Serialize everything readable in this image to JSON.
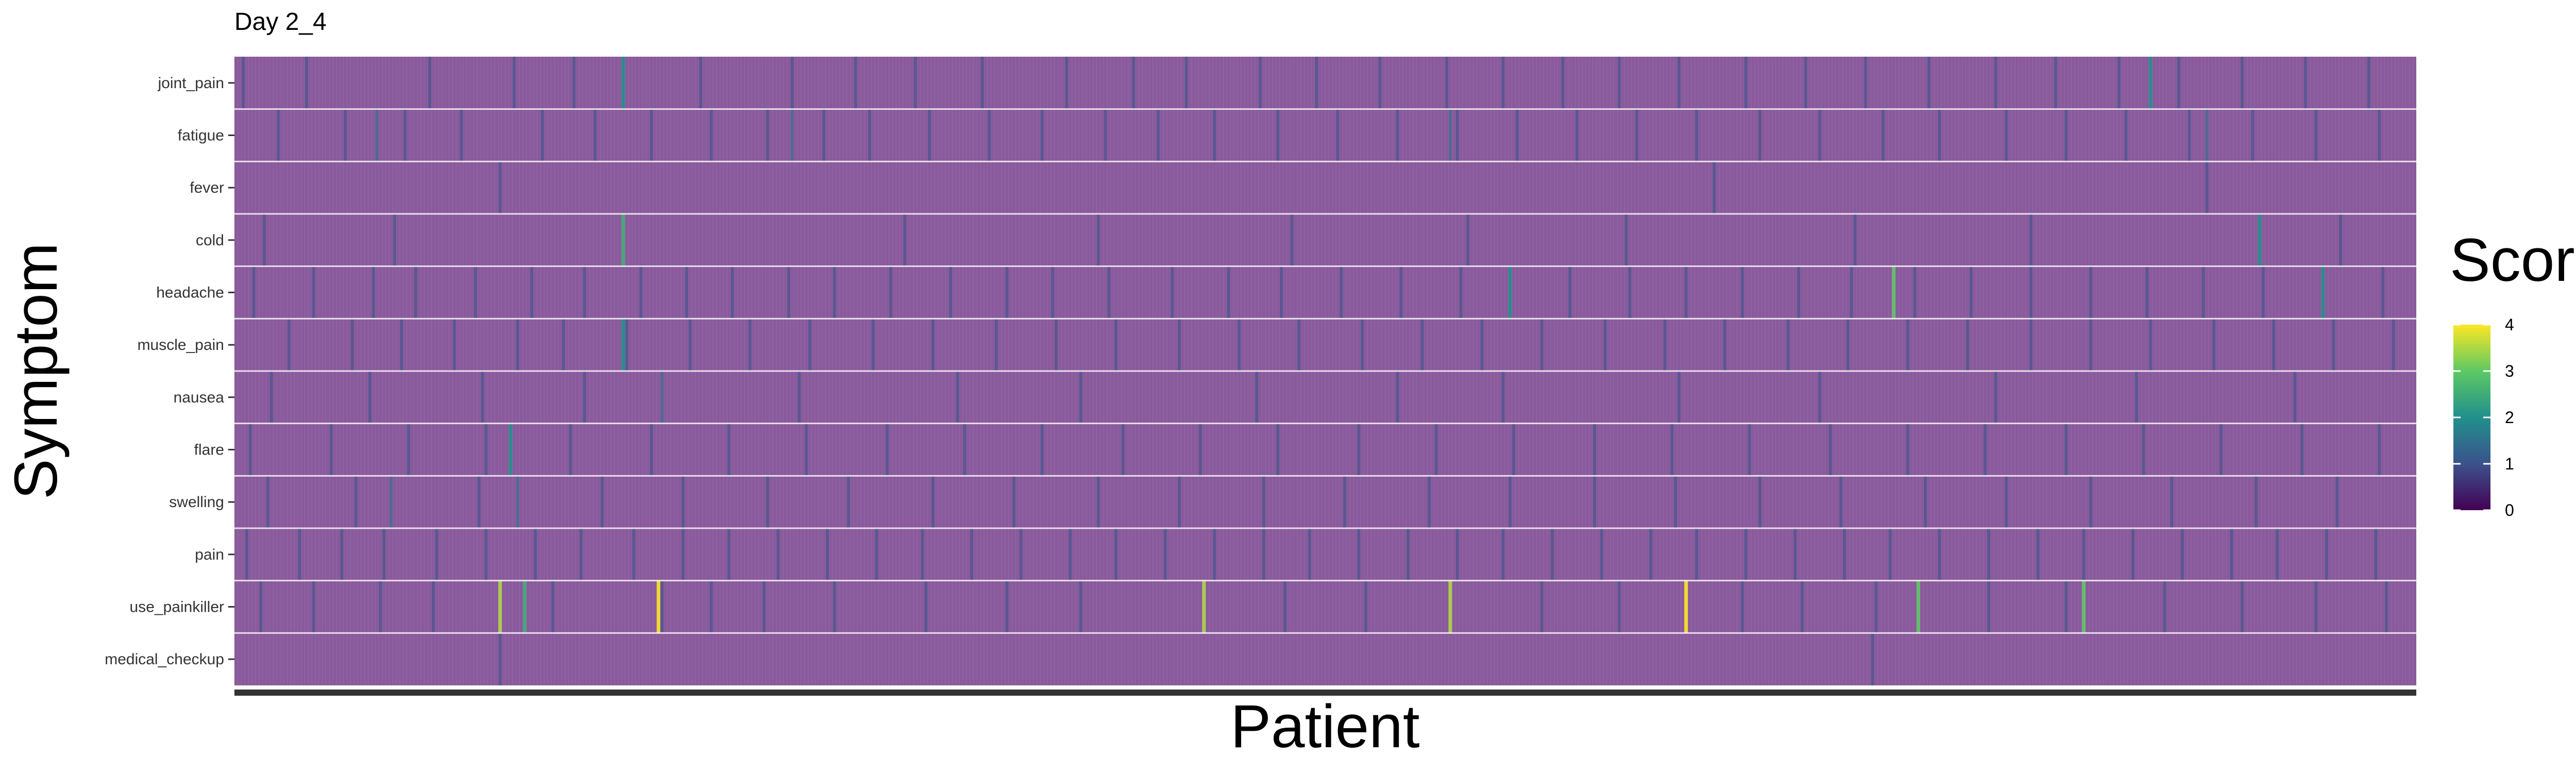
{
  "chart_data": {
    "type": "heatmap",
    "title": "Day 2_4",
    "xlabel": "Patient",
    "ylabel": "Symptom",
    "legend": {
      "title": "Score",
      "placement": "right",
      "ticks": [
        "0",
        "1",
        "2",
        "3",
        "4"
      ],
      "range": [
        0,
        4
      ]
    },
    "colormap": [
      "#440154",
      "#3b528b",
      "#21908c",
      "#5dc963",
      "#fde725"
    ],
    "cell_alpha": 0.6,
    "grid": true,
    "x_tick_labels_visible": false,
    "patient_count": 620,
    "rows": [
      {
        "label": "joint_pain",
        "nonzero": [
          2,
          20,
          55,
          79,
          96,
          110,
          132,
          158,
          176,
          193,
          212,
          236,
          255,
          270,
          291,
          307,
          325,
          344,
          360,
          377,
          393,
          410,
          429,
          446,
          463,
          481,
          500,
          517,
          535,
          552,
          570,
          588,
          606
        ],
        "highlight": [
          {
            "patient": 110,
            "score": 2
          },
          {
            "patient": 544,
            "score": 2
          }
        ]
      },
      {
        "label": "fatigue",
        "nonzero": [
          12,
          31,
          48,
          64,
          87,
          102,
          118,
          135,
          151,
          167,
          180,
          197,
          214,
          229,
          247,
          262,
          278,
          296,
          313,
          330,
          347,
          364,
          381,
          398,
          415,
          433,
          450,
          468,
          484,
          503,
          520,
          537,
          555,
          573,
          591,
          609
        ],
        "highlight": [
          {
            "patient": 40,
            "score": 1.5
          },
          {
            "patient": 158,
            "score": 1.5
          },
          {
            "patient": 345,
            "score": 1.5
          },
          {
            "patient": 560,
            "score": 1.5
          }
        ]
      },
      {
        "label": "fever",
        "nonzero": [
          75,
          420,
          560
        ],
        "highlight": []
      },
      {
        "label": "cold",
        "nonzero": [
          8,
          45,
          110,
          190,
          245,
          300,
          350,
          395,
          460,
          510,
          575,
          598
        ],
        "highlight": [
          {
            "patient": 110,
            "score": 2.5
          },
          {
            "patient": 575,
            "score": 2
          }
        ]
      },
      {
        "label": "headache",
        "nonzero": [
          5,
          22,
          39,
          51,
          68,
          84,
          99,
          115,
          128,
          141,
          157,
          170,
          186,
          203,
          219,
          232,
          248,
          266,
          282,
          297,
          314,
          331,
          348,
          362,
          379,
          396,
          412,
          428,
          444,
          459,
          477,
          493,
          510,
          527,
          543,
          559,
          576,
          593,
          610
        ],
        "highlight": [
          {
            "patient": 362,
            "score": 2
          },
          {
            "patient": 471,
            "score": 3
          },
          {
            "patient": 593,
            "score": 2
          }
        ]
      },
      {
        "label": "muscle_pain",
        "nonzero": [
          15,
          33,
          47,
          62,
          80,
          93,
          111,
          129,
          146,
          163,
          181,
          198,
          216,
          233,
          250,
          268,
          285,
          302,
          320,
          337,
          354,
          371,
          389,
          406,
          423,
          441,
          458,
          475,
          492,
          510,
          527,
          544,
          562,
          579,
          596,
          613
        ],
        "highlight": [
          {
            "patient": 110,
            "score": 2
          }
        ]
      },
      {
        "label": "nausea",
        "nonzero": [
          10,
          38,
          70,
          99,
          121,
          160,
          205,
          240,
          290,
          330,
          360,
          410,
          450,
          500,
          540,
          585
        ],
        "highlight": [
          {
            "patient": 121,
            "score": 1.5
          }
        ]
      },
      {
        "label": "flare",
        "nonzero": [
          4,
          27,
          49,
          71,
          78,
          95,
          118,
          140,
          162,
          185,
          207,
          229,
          252,
          274,
          296,
          319,
          341,
          363,
          386,
          408,
          430,
          453,
          475,
          497,
          520,
          542,
          564,
          587,
          609
        ],
        "highlight": [
          {
            "patient": 78,
            "score": 2
          }
        ]
      },
      {
        "label": "swelling",
        "nonzero": [
          9,
          34,
          44,
          69,
          80,
          104,
          127,
          151,
          174,
          198,
          221,
          245,
          268,
          292,
          315,
          339,
          362,
          386,
          409,
          433,
          456,
          480,
          503,
          527,
          550,
          574,
          597
        ],
        "highlight": [
          {
            "patient": 44,
            "score": 1.5
          },
          {
            "patient": 80,
            "score": 1.5
          }
        ]
      },
      {
        "label": "pain",
        "nonzero": [
          3,
          18,
          30,
          42,
          57,
          71,
          85,
          98,
          113,
          127,
          140,
          154,
          168,
          182,
          195,
          209,
          223,
          237,
          250,
          264,
          278,
          292,
          305,
          319,
          333,
          347,
          360,
          374,
          388,
          402,
          415,
          429,
          443,
          457,
          470,
          484,
          498,
          512,
          525,
          539,
          553,
          567,
          580,
          594,
          608
        ],
        "highlight": []
      },
      {
        "label": "use_painkiller",
        "nonzero": [
          7,
          22,
          41,
          56,
          75,
          82,
          90,
          121,
          135,
          150,
          170,
          196,
          219,
          240,
          275,
          298,
          321,
          345,
          371,
          393,
          412,
          428,
          445,
          466,
          498,
          520,
          548,
          570,
          591,
          611
        ],
        "highlight": [
          {
            "patient": 75,
            "score": 3.5
          },
          {
            "patient": 82,
            "score": 2.5
          },
          {
            "patient": 120,
            "score": 4
          },
          {
            "patient": 275,
            "score": 3.5
          },
          {
            "patient": 345,
            "score": 3.5
          },
          {
            "patient": 412,
            "score": 4
          },
          {
            "patient": 478,
            "score": 3
          },
          {
            "patient": 525,
            "score": 3
          }
        ]
      },
      {
        "label": "medical_checkup",
        "nonzero": [
          75,
          465
        ],
        "highlight": []
      }
    ]
  }
}
